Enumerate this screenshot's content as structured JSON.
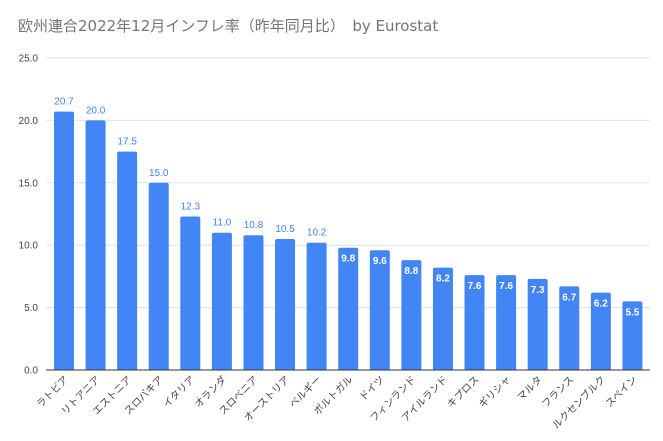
{
  "chart_data": {
    "type": "bar",
    "title": "欧州連合2022年12月インフレ率（昨年同月比）　by Eurostat",
    "xlabel": "",
    "ylabel": "",
    "ylim": [
      0,
      25
    ],
    "yticks": [
      "0.0",
      "5.0",
      "10.0",
      "15.0",
      "20.0",
      "25.0"
    ],
    "grid": true,
    "legend": "none",
    "bar_color": "#4285f4",
    "categories": [
      "ラトビア",
      "リトアニア",
      "エストニア",
      "スロバキア",
      "イタリア",
      "オランダ",
      "スロベニア",
      "オーストリア",
      "ベルギー",
      "ポルトガル",
      "ドイツ",
      "フィンランド",
      "アイルランド",
      "キプロス",
      "ギリシャ",
      "マルタ",
      "フランス",
      "ルクセンブルク",
      "スペイン"
    ],
    "values": [
      20.7,
      20.0,
      17.5,
      15.0,
      12.3,
      11.0,
      10.8,
      10.5,
      10.2,
      9.8,
      9.6,
      8.8,
      8.2,
      7.6,
      7.6,
      7.3,
      6.7,
      6.2,
      5.5
    ],
    "data_labels": [
      "20.7",
      "20.0",
      "17.5",
      "15.0",
      "12.3",
      "11.0",
      "10.8",
      "10.5",
      "10.2",
      "9.8",
      "9.6",
      "8.8",
      "8.2",
      "7.6",
      "7.6",
      "7.3",
      "6.7",
      "6.2",
      "5.5"
    ]
  }
}
